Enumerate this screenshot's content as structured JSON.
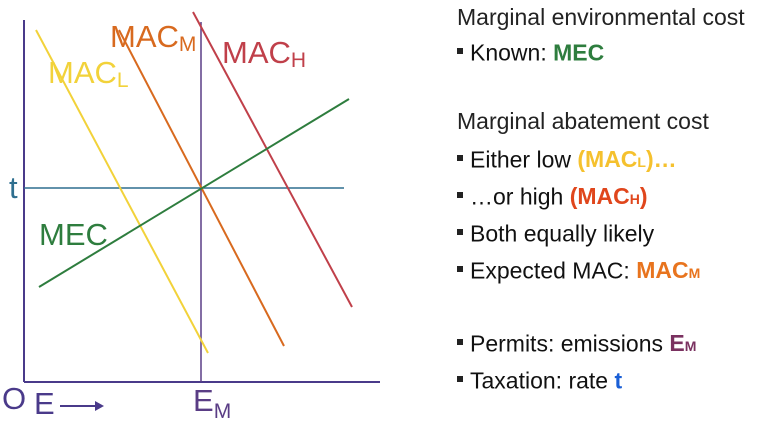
{
  "chart": {
    "axis_origin_label": "O",
    "x_axis_label": "E",
    "tax_label": "t",
    "em_label": "E",
    "em_sub": "M",
    "curves": [
      {
        "key": "mac_m",
        "label": "MAC",
        "sub": "M",
        "color": "#d86a1f"
      },
      {
        "key": "mac_h",
        "label": "MAC",
        "sub": "H",
        "color": "#c0404a"
      },
      {
        "key": "mac_l",
        "label": "MAC",
        "sub": "L",
        "color": "#f2d23a"
      },
      {
        "key": "mec",
        "label": "MEC",
        "sub": "",
        "color": "#2e7d3e"
      }
    ],
    "axis_color": "#4a3a8a",
    "tax_line_color": "#2f6f8f",
    "em_line_color": "#5a3d85"
  },
  "panel": {
    "heading1": "Marginal environmental cost",
    "known_prefix": "Known: ",
    "known_value": "MEC",
    "heading2": "Marginal abatement cost",
    "low_prefix": "Either low ",
    "low_open": "(MAC",
    "low_sub": "L",
    "low_close": ")…",
    "high_prefix": "…or high ",
    "high_open": "(MAC",
    "high_sub": "H",
    "high_close": ")",
    "equal_text": "Both equally likely",
    "expected_prefix": "Expected MAC: ",
    "expected_main": "MAC",
    "expected_sub": "M",
    "permits_prefix": "Permits: emissions ",
    "permits_main": "E",
    "permits_sub": "M",
    "tax_prefix": "Taxation: rate ",
    "tax_value": "t",
    "colors": {
      "mec": "#2e7d3e",
      "low": "#f5c12e",
      "high": "#e0461c",
      "expected": "#e8741e",
      "em": "#7a3160",
      "tax": "#1a5fd6"
    }
  }
}
